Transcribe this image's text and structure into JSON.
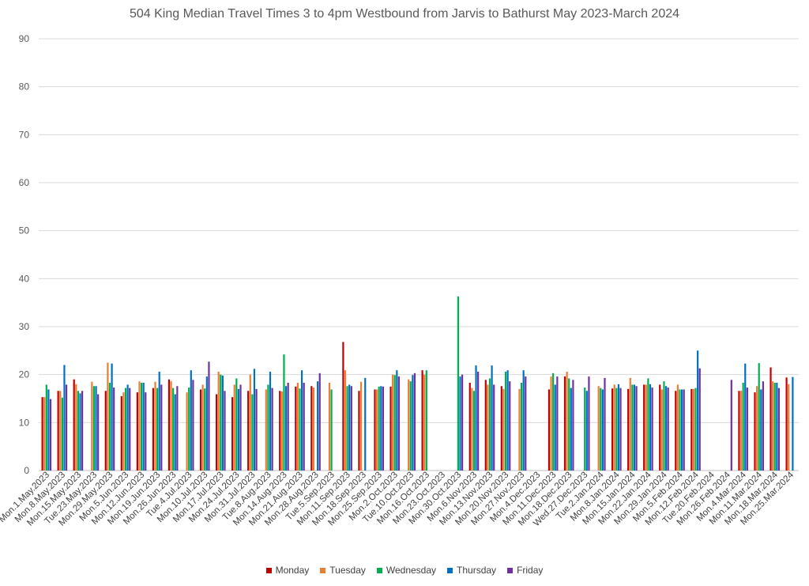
{
  "chart_data": {
    "type": "bar",
    "title": "504 King Median Travel Times 3 to 4pm Westbound from Jarvis to Bathurst May 2023-March 2024",
    "xlabel": "",
    "ylabel": "",
    "ylim": [
      0,
      90
    ],
    "yticks": [
      0,
      10,
      20,
      30,
      40,
      50,
      60,
      70,
      80,
      90
    ],
    "grid": true,
    "legend_position": "bottom",
    "categories": [
      "Mon.1.May.2023",
      "Mon.8.May.2023",
      "Mon.15.May.2023",
      "Tue.23.May.2023",
      "Mon.29.May.2023",
      "Mon.5.Jun.2023",
      "Mon.12.Jun.2023",
      "Mon.19.Jun.2023",
      "Mon.26.Jun.2023",
      "Tue.4.Jul.2023",
      "Mon.10.Jul.2023",
      "Mon.17.Jul.2023",
      "Mon.24.Jul.2023",
      "Mon.31.Jul.2023",
      "Tue.8.Aug.2023",
      "Mon.14.Aug.2023",
      "Mon.21.Aug.2023",
      "Mon.28.Aug.2023",
      "Tue.5.Sep.2023",
      "Mon.11.Sep.2023",
      "Mon.18.Sep.2023",
      "Mon.25.Sep.2023",
      "Mon.2.Oct.2023",
      "Tue.10.Oct.2023",
      "Mon.16.Oct.2023",
      "Mon.23.Oct.2023",
      "Mon.30.Oct.2023",
      "Mon.6.Nov.2023",
      "Mon.13.Nov.2023",
      "Mon.20.Nov.2023",
      "Mon.27.Nov.2023",
      "Mon.4.Dec.2023",
      "Mon.11.Dec.2023",
      "Mon.18.Dec.2023",
      "Wed.27.Dec.2023",
      "Tue.2.Jan.2024",
      "Mon.8.Jan.2024",
      "Mon.15.Jan.2024",
      "Mon.22.Jan.2024",
      "Mon.29.Jan.2024",
      "Mon.5.Feb.2024",
      "Mon.12.Feb.2024",
      "Tue.20.Feb.2024",
      "Mon.26.Feb.2024",
      "Mon.4.Mar.2024",
      "Mon.11.Mar.2024",
      "Mon.18.Mar.2024",
      "Mon.25.Mar.2024"
    ],
    "series": [
      {
        "name": "Monday",
        "color": "#c00000",
        "values": [
          15.3,
          16.6,
          19.0,
          null,
          16.6,
          15.5,
          16.3,
          17.2,
          19.0,
          null,
          16.9,
          15.9,
          15.3,
          16.6,
          null,
          16.6,
          17.5,
          17.6,
          null,
          26.8,
          16.6,
          16.9,
          17.5,
          null,
          20.9,
          null,
          null,
          18.3,
          18.9,
          17.6,
          null,
          null,
          16.9,
          19.6,
          null,
          null,
          17.1,
          17.0,
          17.9,
          17.9,
          16.6,
          17.0,
          null,
          null,
          16.6,
          16.3,
          21.5,
          19.4
        ]
      },
      {
        "name": "Tuesday",
        "color": "#ed7d31",
        "values": [
          15.3,
          16.6,
          18.0,
          18.5,
          22.5,
          16.3,
          18.6,
          18.5,
          18.6,
          16.3,
          17.9,
          20.6,
          17.9,
          20.0,
          16.9,
          16.5,
          18.3,
          17.3,
          18.3,
          20.9,
          18.5,
          16.9,
          20.0,
          19.0,
          20.0,
          null,
          null,
          17.2,
          17.9,
          17.0,
          17.0,
          null,
          19.6,
          20.6,
          null,
          17.6,
          17.9,
          19.3,
          17.9,
          16.9,
          17.9,
          17.0,
          null,
          null,
          16.6,
          17.6,
          18.6,
          18.0
        ]
      },
      {
        "name": "Wednesday",
        "color": "#00b050",
        "values": [
          17.9,
          15.2,
          16.6,
          17.6,
          18.3,
          17.2,
          18.3,
          17.2,
          17.2,
          17.3,
          17.1,
          20.0,
          19.2,
          15.9,
          17.9,
          24.2,
          17.1,
          null,
          16.9,
          17.6,
          null,
          17.5,
          19.9,
          18.6,
          20.9,
          null,
          36.3,
          16.6,
          19.2,
          20.6,
          18.3,
          null,
          20.3,
          19.2,
          17.3,
          17.2,
          17.2,
          17.9,
          19.2,
          18.6,
          16.9,
          17.2,
          null,
          null,
          18.3,
          22.4,
          18.3,
          null
        ]
      },
      {
        "name": "Thursday",
        "color": "#0070c0",
        "values": [
          16.9,
          22.0,
          16.1,
          17.6,
          22.3,
          17.9,
          18.3,
          20.6,
          15.9,
          20.9,
          19.6,
          19.8,
          17.0,
          21.2,
          20.6,
          17.6,
          20.9,
          18.6,
          null,
          17.9,
          19.3,
          17.6,
          20.9,
          19.9,
          null,
          null,
          19.6,
          21.9,
          21.9,
          20.9,
          20.9,
          null,
          17.9,
          17.2,
          16.6,
          16.9,
          18.0,
          17.9,
          18.0,
          17.6,
          16.9,
          25.0,
          null,
          null,
          22.3,
          16.9,
          18.3,
          19.5
        ]
      },
      {
        "name": "Friday",
        "color": "#7030a0",
        "values": [
          14.9,
          17.9,
          16.6,
          15.9,
          17.3,
          17.2,
          16.3,
          17.9,
          17.6,
          18.9,
          22.7,
          16.6,
          17.9,
          17.0,
          17.2,
          18.3,
          18.3,
          20.3,
          null,
          17.6,
          null,
          17.5,
          19.6,
          20.3,
          null,
          null,
          20.0,
          20.6,
          17.9,
          18.6,
          19.6,
          null,
          19.6,
          18.9,
          19.6,
          19.3,
          17.2,
          17.6,
          17.3,
          17.3,
          16.9,
          21.3,
          null,
          18.9,
          17.3,
          18.6,
          17.2,
          null
        ]
      }
    ]
  }
}
